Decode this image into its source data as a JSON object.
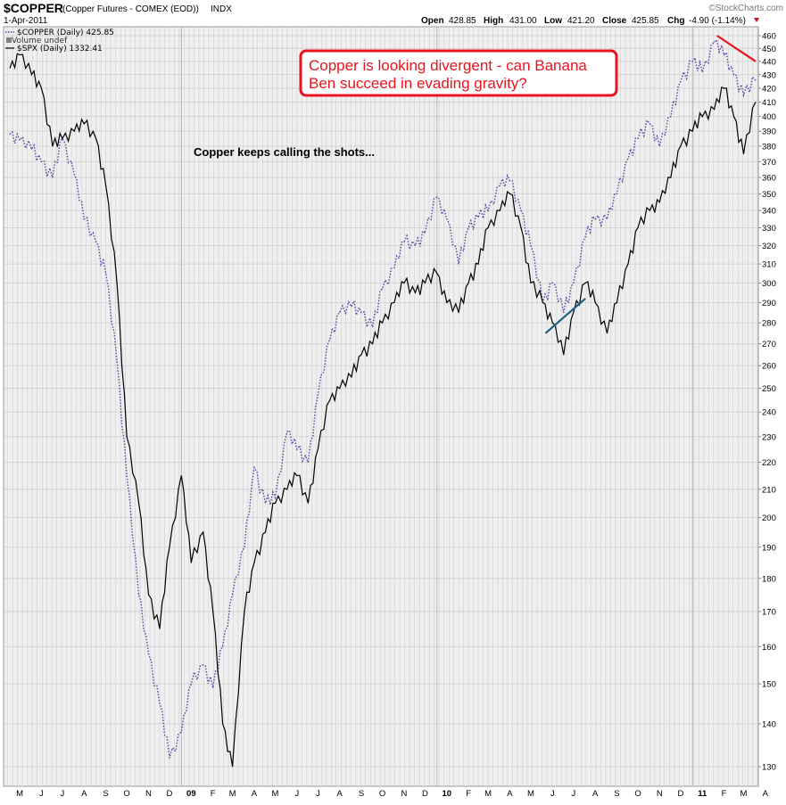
{
  "header": {
    "symbol": "$COPPER",
    "description": "(Copper Futures - COMEX (EOD))",
    "exchange": "INDX",
    "date": "1-Apr-2011",
    "watermark": "©StockCharts.com",
    "quote": {
      "open_label": "Open",
      "open": "428.85",
      "high_label": "High",
      "high": "431.00",
      "low_label": "Low",
      "low": "421.20",
      "close_label": "Close",
      "close": "425.85",
      "chg_label": "Chg",
      "chg": "-4.90 (-1.14%)"
    }
  },
  "legend": [
    {
      "text": "$COPPER (Daily) 425.85",
      "style": "dotted",
      "color": "#5a3fa0"
    },
    {
      "text": "Volume undef",
      "style": "bars",
      "color": "#808080"
    },
    {
      "text": "$SPX (Daily) 1332.41",
      "style": "solid",
      "color": "#000000"
    }
  ],
  "annotations": {
    "callout": "Copper is looking divergent - can Banana Ben succeed in evading gravity?",
    "callout_line1": "Copper is looking divergent - can Banana",
    "callout_line2": "Ben succeed in evading gravity?",
    "note": "Copper keeps calling the shots..."
  },
  "colors": {
    "plot_bg": "#efefef",
    "grid": "#cfcfcf",
    "copper_line": "#5a3fa0",
    "copper_line_down": "#b03a4a",
    "spx_line": "#000000",
    "callout_border": "#e8141e",
    "callout_text": "#e8141e",
    "trend_red": "#e8141e",
    "trend_blue": "#1f5f86"
  },
  "chart_data": {
    "type": "line",
    "title": "$COPPER",
    "xlabel": "",
    "ylabel": "",
    "ylim": [
      125,
      465
    ],
    "y_scale": "log",
    "x_tick_labels": [
      "M",
      "J",
      "J",
      "A",
      "S",
      "O",
      "N",
      "D",
      "09",
      "F",
      "M",
      "A",
      "M",
      "J",
      "J",
      "A",
      "S",
      "O",
      "N",
      "D",
      "10",
      "F",
      "M",
      "A",
      "M",
      "J",
      "J",
      "A",
      "S",
      "O",
      "N",
      "D",
      "11",
      "F",
      "M",
      "A"
    ],
    "y_ticks": [
      130,
      140,
      150,
      160,
      170,
      180,
      190,
      200,
      210,
      220,
      230,
      240,
      250,
      260,
      270,
      280,
      290,
      300,
      310,
      320,
      330,
      340,
      350,
      360,
      370,
      380,
      390,
      400,
      410,
      420,
      430,
      440,
      450,
      460
    ],
    "grid": true,
    "legend_position": "top-left",
    "series": [
      {
        "name": "$COPPER (Daily) 425.85",
        "style": "dotted",
        "points": [
          [
            "2008-05-01",
            388
          ],
          [
            "2008-05-15",
            384
          ],
          [
            "2008-06-01",
            378
          ],
          [
            "2008-06-15",
            370
          ],
          [
            "2008-07-01",
            360
          ],
          [
            "2008-07-15",
            385
          ],
          [
            "2008-08-01",
            362
          ],
          [
            "2008-08-15",
            335
          ],
          [
            "2008-09-01",
            322
          ],
          [
            "2008-09-15",
            305
          ],
          [
            "2008-10-01",
            262
          ],
          [
            "2008-10-15",
            215
          ],
          [
            "2008-11-01",
            175
          ],
          [
            "2008-11-15",
            158
          ],
          [
            "2008-12-01",
            145
          ],
          [
            "2008-12-15",
            132
          ],
          [
            "2009-01-01",
            138
          ],
          [
            "2009-01-15",
            150
          ],
          [
            "2009-02-01",
            155
          ],
          [
            "2009-02-15",
            149
          ],
          [
            "2009-03-01",
            160
          ],
          [
            "2009-03-15",
            175
          ],
          [
            "2009-04-01",
            190
          ],
          [
            "2009-04-15",
            218
          ],
          [
            "2009-05-01",
            205
          ],
          [
            "2009-05-15",
            207
          ],
          [
            "2009-06-01",
            232
          ],
          [
            "2009-06-15",
            225
          ],
          [
            "2009-07-01",
            220
          ],
          [
            "2009-07-15",
            247
          ],
          [
            "2009-08-01",
            272
          ],
          [
            "2009-08-15",
            285
          ],
          [
            "2009-09-01",
            288
          ],
          [
            "2009-09-15",
            285
          ],
          [
            "2009-10-01",
            278
          ],
          [
            "2009-10-15",
            297
          ],
          [
            "2009-11-01",
            308
          ],
          [
            "2009-11-15",
            322
          ],
          [
            "2009-12-01",
            320
          ],
          [
            "2009-12-15",
            327
          ],
          [
            "2010-01-01",
            348
          ],
          [
            "2010-01-15",
            335
          ],
          [
            "2010-02-01",
            310
          ],
          [
            "2010-02-15",
            330
          ],
          [
            "2010-03-01",
            336
          ],
          [
            "2010-03-15",
            340
          ],
          [
            "2010-04-01",
            355
          ],
          [
            "2010-04-15",
            358
          ],
          [
            "2010-05-01",
            340
          ],
          [
            "2010-05-15",
            320
          ],
          [
            "2010-06-01",
            290
          ],
          [
            "2010-06-15",
            300
          ],
          [
            "2010-07-01",
            285
          ],
          [
            "2010-07-15",
            300
          ],
          [
            "2010-08-01",
            325
          ],
          [
            "2010-08-15",
            335
          ],
          [
            "2010-09-01",
            335
          ],
          [
            "2010-09-15",
            350
          ],
          [
            "2010-10-01",
            372
          ],
          [
            "2010-10-15",
            385
          ],
          [
            "2010-11-01",
            395
          ],
          [
            "2010-11-15",
            380
          ],
          [
            "2010-12-01",
            400
          ],
          [
            "2010-12-15",
            425
          ],
          [
            "2011-01-01",
            440
          ],
          [
            "2011-01-15",
            432
          ],
          [
            "2011-02-01",
            455
          ],
          [
            "2011-02-15",
            445
          ],
          [
            "2011-03-01",
            430
          ],
          [
            "2011-03-15",
            415
          ],
          [
            "2011-04-01",
            425.85
          ]
        ]
      },
      {
        "name": "$SPX (Daily) 1332.41",
        "style": "solid",
        "points": [
          [
            "2008-05-01",
            435
          ],
          [
            "2008-05-15",
            445
          ],
          [
            "2008-06-01",
            430
          ],
          [
            "2008-06-15",
            420
          ],
          [
            "2008-07-01",
            380
          ],
          [
            "2008-07-15",
            385
          ],
          [
            "2008-08-01",
            390
          ],
          [
            "2008-08-15",
            395
          ],
          [
            "2008-09-01",
            385
          ],
          [
            "2008-09-15",
            355
          ],
          [
            "2008-10-01",
            300
          ],
          [
            "2008-10-15",
            230
          ],
          [
            "2008-11-01",
            205
          ],
          [
            "2008-11-15",
            175
          ],
          [
            "2008-12-01",
            165
          ],
          [
            "2008-12-15",
            190
          ],
          [
            "2009-01-01",
            215
          ],
          [
            "2009-01-15",
            185
          ],
          [
            "2009-02-01",
            195
          ],
          [
            "2009-02-15",
            170
          ],
          [
            "2009-03-01",
            140
          ],
          [
            "2009-03-15",
            130
          ],
          [
            "2009-04-01",
            170
          ],
          [
            "2009-04-15",
            185
          ],
          [
            "2009-05-01",
            195
          ],
          [
            "2009-05-15",
            205
          ],
          [
            "2009-06-01",
            210
          ],
          [
            "2009-06-15",
            215
          ],
          [
            "2009-07-01",
            205
          ],
          [
            "2009-07-15",
            225
          ],
          [
            "2009-08-01",
            245
          ],
          [
            "2009-08-15",
            250
          ],
          [
            "2009-09-01",
            255
          ],
          [
            "2009-09-15",
            265
          ],
          [
            "2009-10-01",
            270
          ],
          [
            "2009-10-15",
            280
          ],
          [
            "2009-11-01",
            290
          ],
          [
            "2009-11-15",
            300
          ],
          [
            "2009-12-01",
            295
          ],
          [
            "2009-12-15",
            300
          ],
          [
            "2010-01-01",
            305
          ],
          [
            "2010-01-15",
            290
          ],
          [
            "2010-02-01",
            285
          ],
          [
            "2010-02-15",
            300
          ],
          [
            "2010-03-01",
            310
          ],
          [
            "2010-03-15",
            330
          ],
          [
            "2010-04-01",
            340
          ],
          [
            "2010-04-15",
            350
          ],
          [
            "2010-05-01",
            330
          ],
          [
            "2010-05-15",
            300
          ],
          [
            "2010-06-01",
            290
          ],
          [
            "2010-06-15",
            280
          ],
          [
            "2010-07-01",
            265
          ],
          [
            "2010-07-15",
            285
          ],
          [
            "2010-08-01",
            300
          ],
          [
            "2010-08-15",
            290
          ],
          [
            "2010-09-01",
            275
          ],
          [
            "2010-09-15",
            290
          ],
          [
            "2010-10-01",
            310
          ],
          [
            "2010-10-15",
            330
          ],
          [
            "2010-11-01",
            340
          ],
          [
            "2010-11-15",
            345
          ],
          [
            "2010-12-01",
            360
          ],
          [
            "2010-12-15",
            380
          ],
          [
            "2011-01-01",
            390
          ],
          [
            "2011-01-15",
            400
          ],
          [
            "2011-02-01",
            405
          ],
          [
            "2011-02-15",
            420
          ],
          [
            "2011-03-01",
            400
          ],
          [
            "2011-03-15",
            375
          ],
          [
            "2011-04-01",
            410
          ]
        ]
      }
    ],
    "trendlines": [
      {
        "color": "red",
        "from": [
          "2011-02-05",
          460
        ],
        "to": [
          "2011-04-01",
          440
        ]
      },
      {
        "color": "blue",
        "from": [
          "2010-06-05",
          275
        ],
        "to": [
          "2010-08-01",
          292
        ]
      }
    ]
  }
}
